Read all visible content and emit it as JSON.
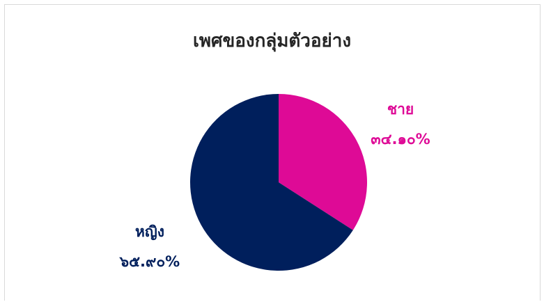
{
  "colors": {
    "male": "#de0a96",
    "female": "#001f5c"
  },
  "chart_data": {
    "type": "pie",
    "title": "เพศของกลุ่มตัวอย่าง",
    "categories": [
      "ชาย",
      "หญิง"
    ],
    "values": [
      34.1,
      65.9
    ],
    "value_labels": [
      "๓๔.๑๐%",
      "๖๕.๙๐%"
    ],
    "legend": "none"
  }
}
